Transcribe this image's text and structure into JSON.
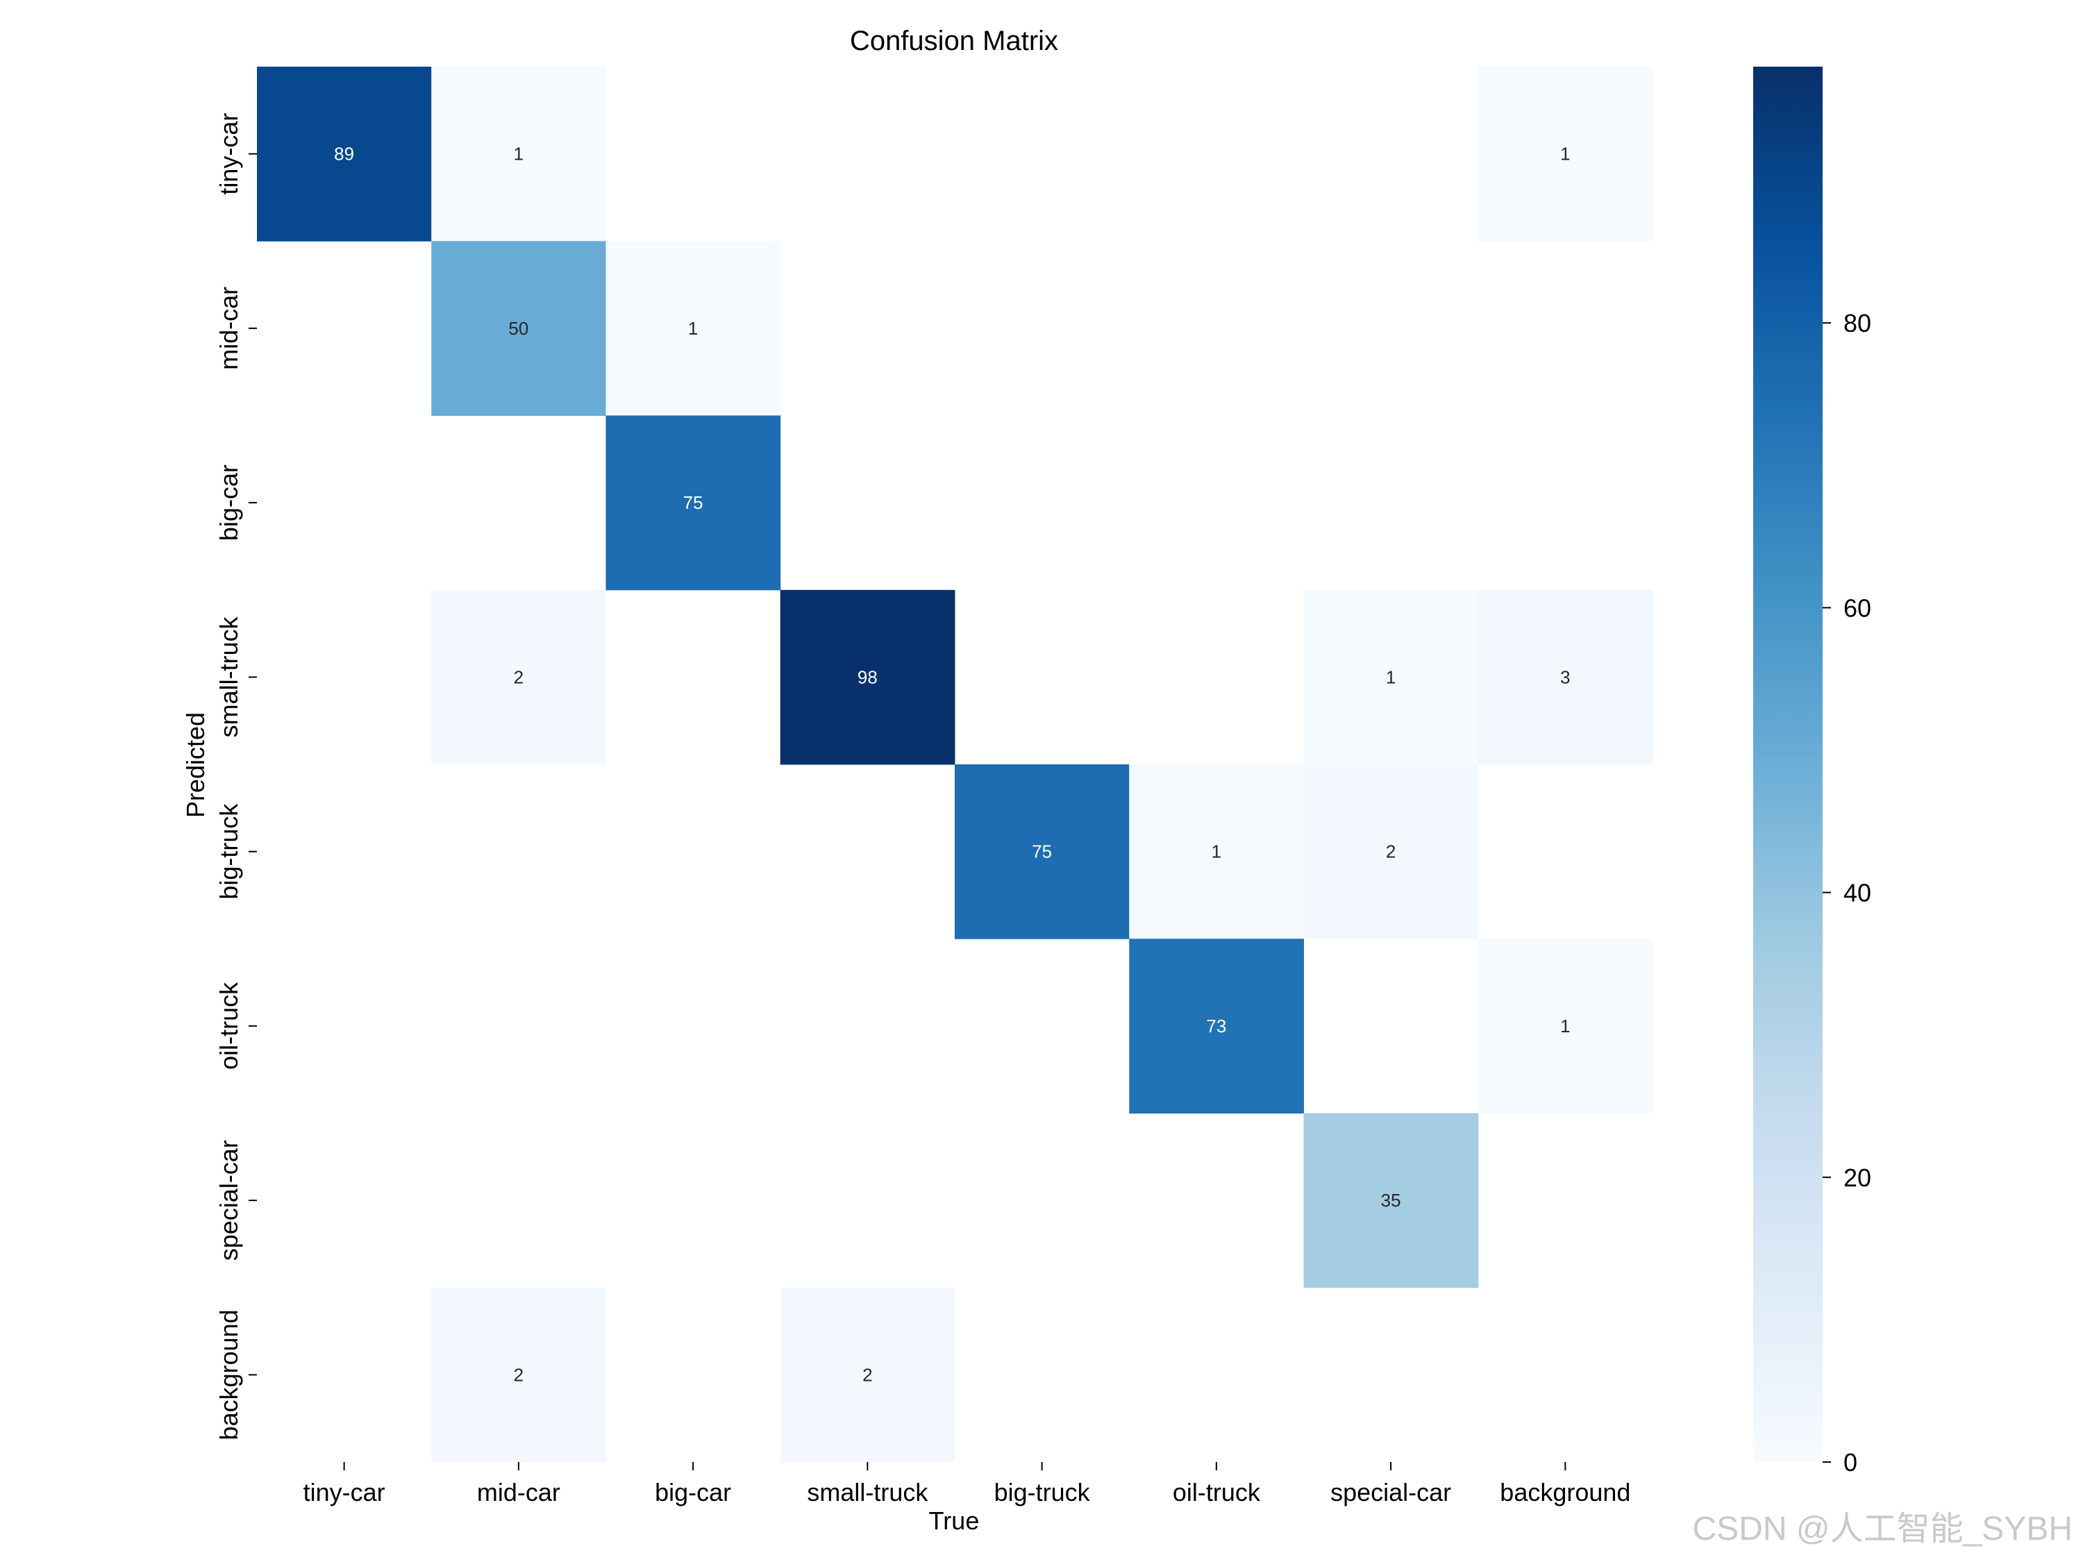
{
  "chart_data": {
    "type": "heatmap",
    "title": "Confusion Matrix",
    "xlabel": "True",
    "ylabel": "Predicted",
    "x_categories": [
      "tiny-car",
      "mid-car",
      "big-car",
      "small-truck",
      "big-truck",
      "oil-truck",
      "special-car",
      "background"
    ],
    "y_categories": [
      "tiny-car",
      "mid-car",
      "big-car",
      "small-truck",
      "big-truck",
      "oil-truck",
      "special-car",
      "background"
    ],
    "matrix": [
      [
        89,
        1,
        null,
        null,
        null,
        null,
        null,
        1
      ],
      [
        null,
        50,
        1,
        null,
        null,
        null,
        null,
        null
      ],
      [
        null,
        null,
        75,
        null,
        null,
        null,
        null,
        null
      ],
      [
        null,
        2,
        null,
        98,
        null,
        null,
        1,
        3
      ],
      [
        null,
        null,
        null,
        null,
        75,
        1,
        2,
        null
      ],
      [
        null,
        null,
        null,
        null,
        null,
        73,
        null,
        1
      ],
      [
        null,
        null,
        null,
        null,
        null,
        null,
        35,
        null
      ],
      [
        null,
        2,
        null,
        2,
        null,
        null,
        null,
        null
      ]
    ],
    "colorbar": {
      "min": 0,
      "max": 98,
      "ticks": [
        0,
        20,
        40,
        60,
        80
      ]
    },
    "colormap": "Blues",
    "colormap_stops": [
      "#f7fbff",
      "#deebf7",
      "#c6dbef",
      "#9ecae1",
      "#6baed6",
      "#4292c6",
      "#2171b5",
      "#08519c",
      "#08306b"
    ],
    "grid": false
  },
  "watermark": "CSDN @人工智能_SYBH"
}
